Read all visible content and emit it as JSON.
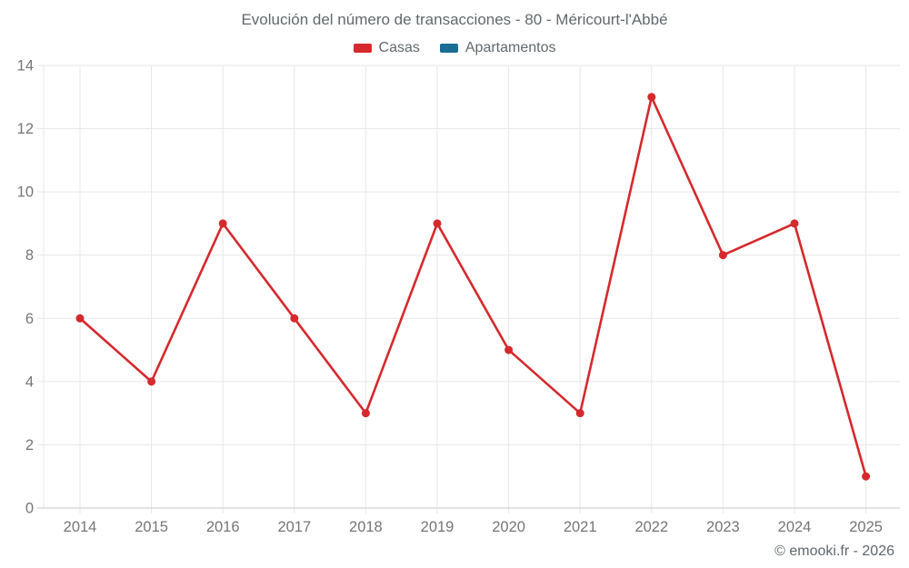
{
  "title": "Evolución del número de transacciones - 80 - Méricourt-l'Abbé",
  "legend": {
    "items": [
      {
        "label": "Casas",
        "color": "#d5292d"
      },
      {
        "label": "Apartamentos",
        "color": "#1a6d94"
      }
    ]
  },
  "footer": {
    "credit": "© emooki.fr - 2026"
  },
  "chart_data": {
    "type": "line",
    "title": "Evolución del número de transacciones - 80 - Méricourt-l'Abbé",
    "x": [
      "2014",
      "2015",
      "2016",
      "2017",
      "2018",
      "2019",
      "2020",
      "2021",
      "2022",
      "2023",
      "2024",
      "2025"
    ],
    "series": [
      {
        "name": "Casas",
        "color": "#d5292d",
        "values": [
          6,
          4,
          9,
          6,
          3,
          9,
          5,
          3,
          13,
          8,
          9,
          1
        ]
      },
      {
        "name": "Apartamentos",
        "color": "#1a6d94",
        "values": []
      }
    ],
    "xlabel": "",
    "ylabel": "",
    "ylim": [
      0,
      14
    ],
    "yticks": [
      0,
      2,
      4,
      6,
      8,
      10,
      12,
      14
    ],
    "grid": true,
    "legend_position": "top",
    "grid_color": "#e7e7e7",
    "axis_line_color": "#d2d2d2",
    "axis_text_color": "#757575",
    "point_radius": 4.5,
    "line_width": 2.6
  }
}
